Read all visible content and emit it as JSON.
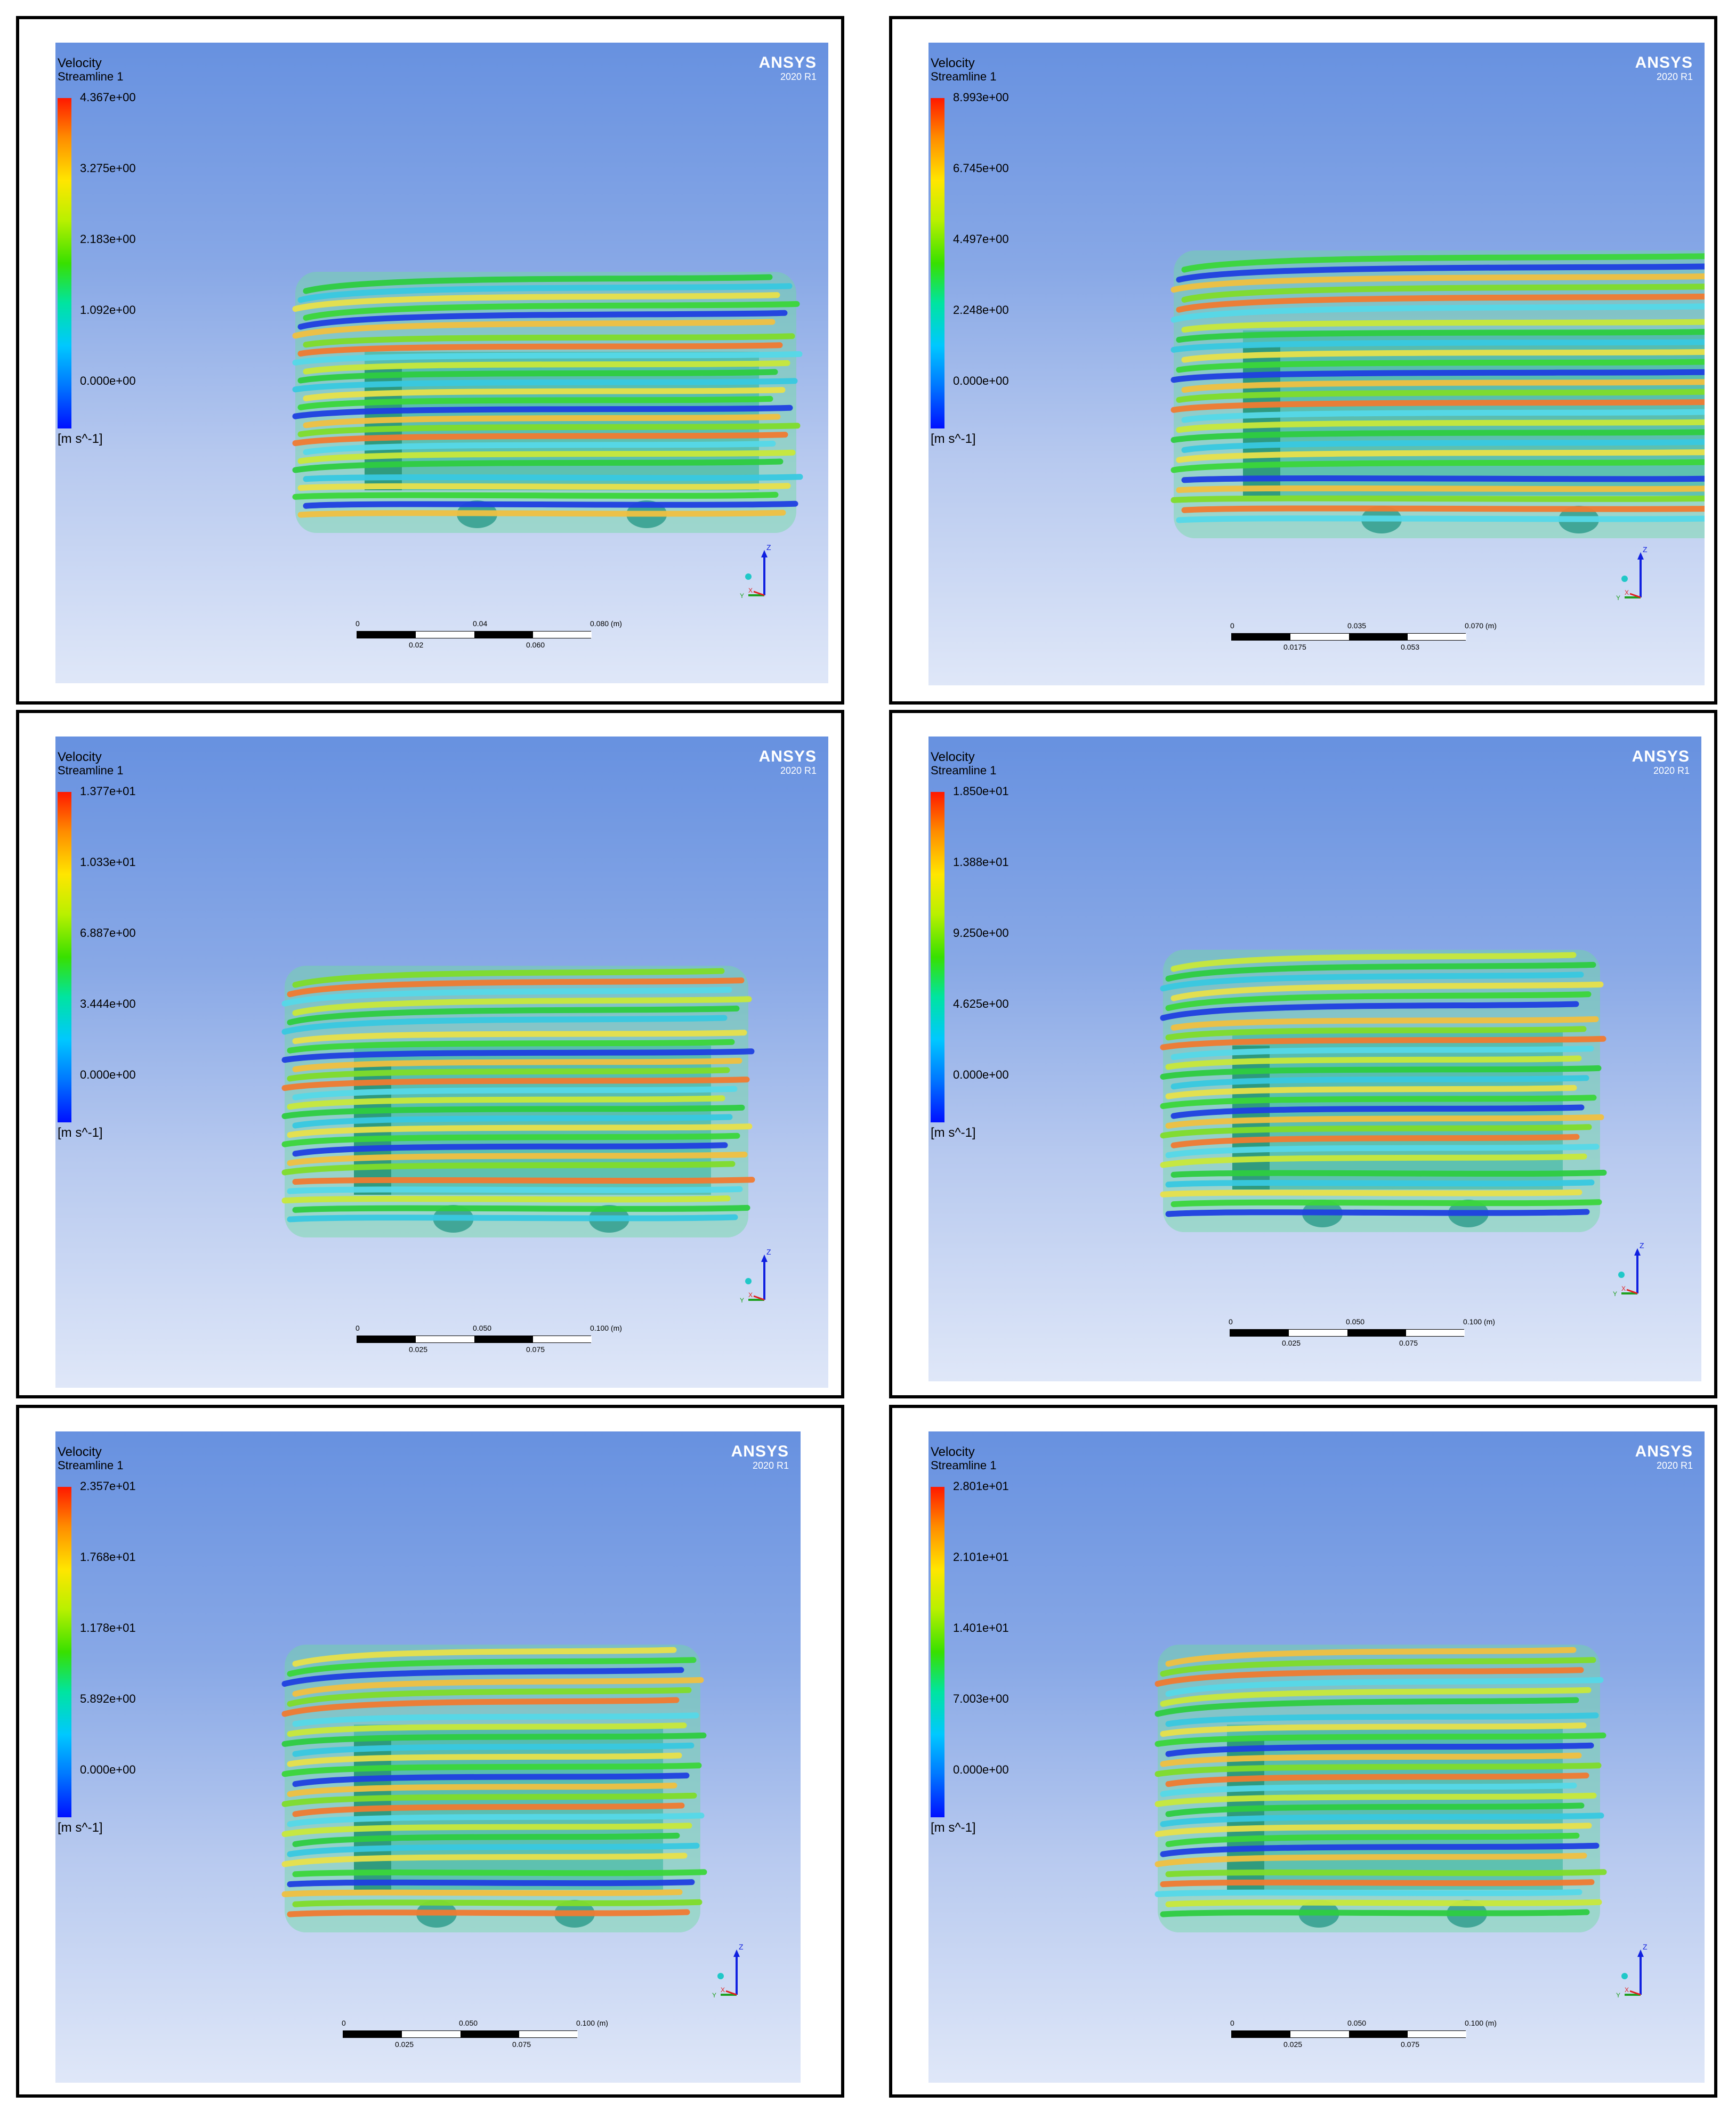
{
  "colors": {
    "bar_top": "#ff1800",
    "bar_bottom": "#0010ff",
    "brand": "#ffffff"
  },
  "panels": [
    {
      "legend_title": "Velocity",
      "legend_subtitle": "Streamline 1",
      "ticks": [
        "4.367e+00",
        "3.275e+00",
        "2.183e+00",
        "1.092e+00",
        "0.000e+00"
      ],
      "unit": "[m s^-1]",
      "brand": "ANSYS",
      "version": "2020 R1",
      "scale_top": [
        "0",
        "0.04",
        "0.080 (m)"
      ],
      "scale_bottom": [
        "0.02",
        "0.060"
      ],
      "axis_z": "Z",
      "axis_y": "Y",
      "axis_x": "X"
    },
    {
      "legend_title": "Velocity",
      "legend_subtitle": "Streamline 1",
      "ticks": [
        "8.993e+00",
        "6.745e+00",
        "4.497e+00",
        "2.248e+00",
        "0.000e+00"
      ],
      "unit": "[m s^-1]",
      "brand": "ANSYS",
      "version": "2020 R1",
      "scale_top": [
        "0",
        "0.035",
        "0.070 (m)"
      ],
      "scale_bottom": [
        "0.0175",
        "0.053"
      ],
      "axis_z": "Z",
      "axis_y": "Y",
      "axis_x": "X"
    },
    {
      "legend_title": "Velocity",
      "legend_subtitle": "Streamline 1",
      "ticks": [
        "1.377e+01",
        "1.033e+01",
        "6.887e+00",
        "3.444e+00",
        "0.000e+00"
      ],
      "unit": "[m s^-1]",
      "brand": "ANSYS",
      "version": "2020 R1",
      "scale_top": [
        "0",
        "0.050",
        "0.100 (m)"
      ],
      "scale_bottom": [
        "0.025",
        "0.075"
      ],
      "axis_z": "Z",
      "axis_y": "Y",
      "axis_x": "X"
    },
    {
      "legend_title": "Velocity",
      "legend_subtitle": "Streamline 1",
      "ticks": [
        "1.850e+01",
        "1.388e+01",
        "9.250e+00",
        "4.625e+00",
        "0.000e+00"
      ],
      "unit": "[m s^-1]",
      "brand": "ANSYS",
      "version": "2020 R1",
      "scale_top": [
        "0",
        "0.050",
        "0.100 (m)"
      ],
      "scale_bottom": [
        "0.025",
        "0.075"
      ],
      "axis_z": "Z",
      "axis_y": "Y",
      "axis_x": "X"
    },
    {
      "legend_title": "Velocity",
      "legend_subtitle": "Streamline 1",
      "ticks": [
        "2.357e+01",
        "1.768e+01",
        "1.178e+01",
        "5.892e+00",
        "0.000e+00"
      ],
      "unit": "[m s^-1]",
      "brand": "ANSYS",
      "version": "2020 R1",
      "scale_top": [
        "0",
        "0.050",
        "0.100 (m)"
      ],
      "scale_bottom": [
        "0.025",
        "0.075"
      ],
      "axis_z": "Z",
      "axis_y": "Y",
      "axis_x": "X"
    },
    {
      "legend_title": "Velocity",
      "legend_subtitle": "Streamline 1",
      "ticks": [
        "2.801e+01",
        "2.101e+01",
        "1.401e+01",
        "7.003e+00",
        "0.000e+00"
      ],
      "unit": "[m s^-1]",
      "brand": "ANSYS",
      "version": "2020 R1",
      "scale_top": [
        "0",
        "0.050",
        "0.100 (m)"
      ],
      "scale_bottom": [
        "0.025",
        "0.075"
      ],
      "axis_z": "Z",
      "axis_y": "Y",
      "axis_x": "X"
    }
  ]
}
